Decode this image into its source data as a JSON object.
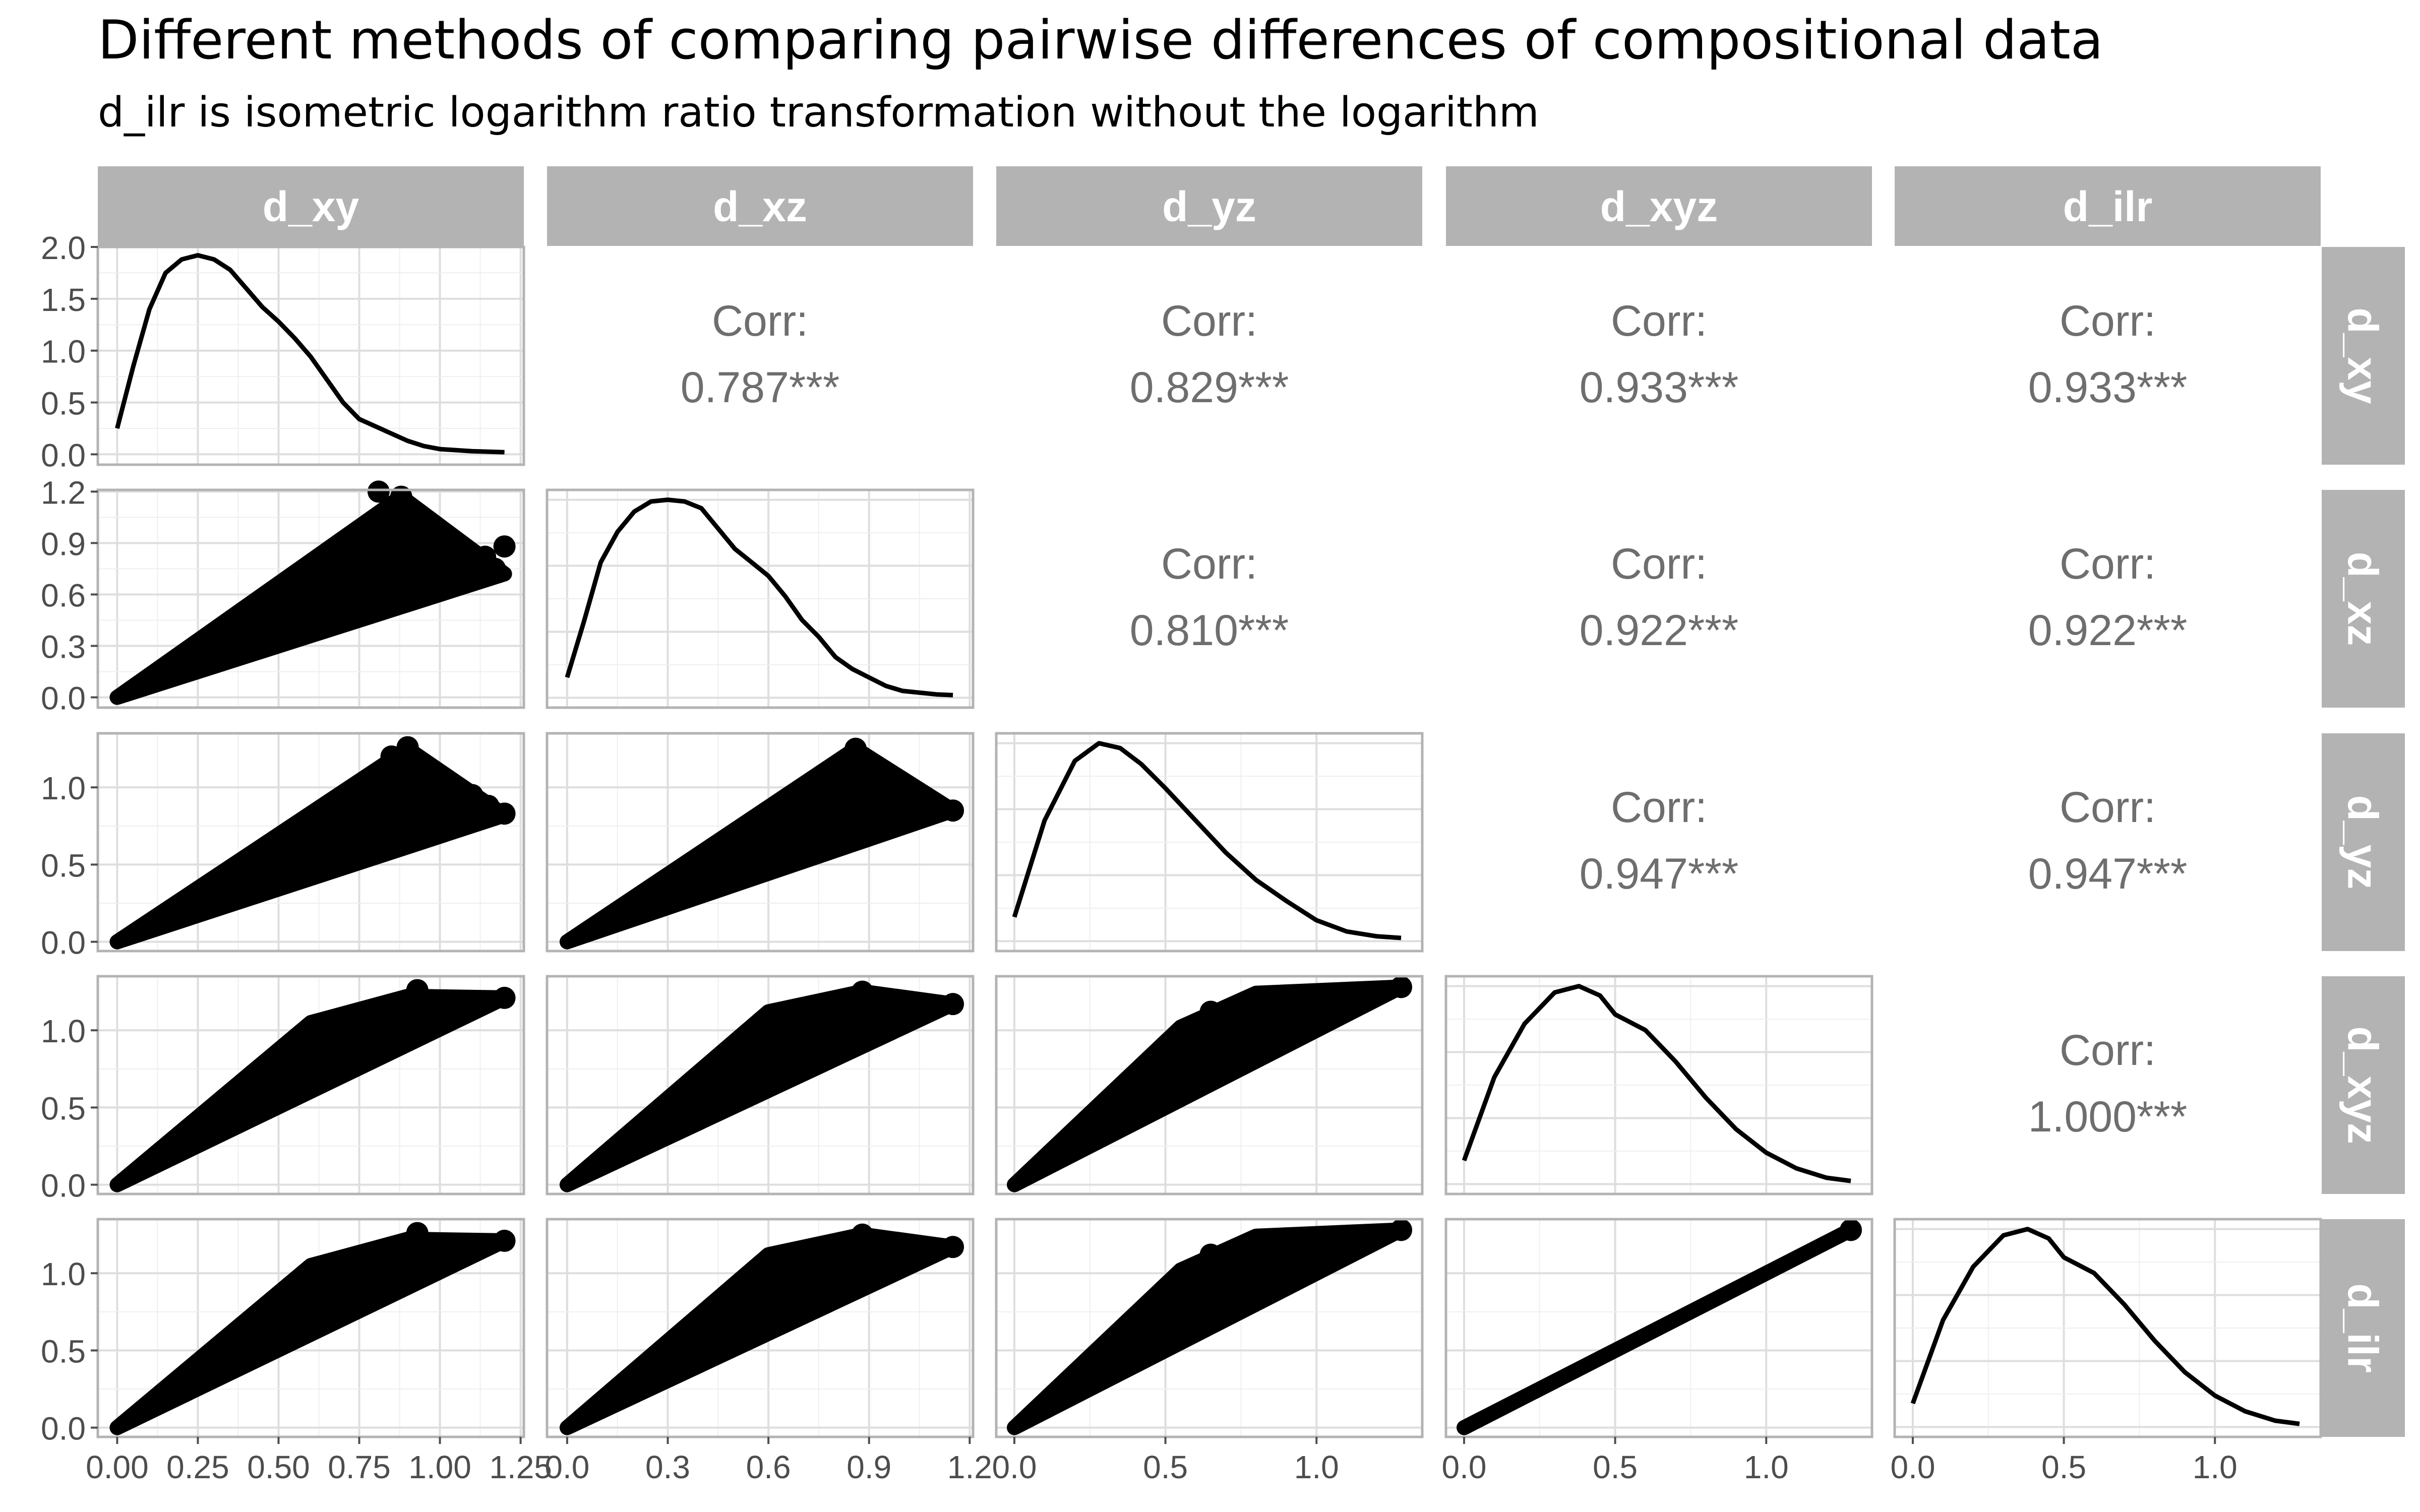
{
  "title": "Different methods of comparing pairwise differences of compositional data",
  "subtitle": "d_ilr is isometric logarithm ratio transformation without the logarithm",
  "colors": {
    "strip_bg": "#b3b3b3",
    "strip_text": "#ffffff",
    "panel_border": "#b3b3b3",
    "grid_major": "#dedede",
    "grid_minor": "#efefef",
    "marks": "#000000",
    "corr_text": "#6e6e6e"
  },
  "chart_data": {
    "type": "pairs",
    "variables": [
      "d_xy",
      "d_xz",
      "d_yz",
      "d_xyz",
      "d_ilr"
    ],
    "axes": {
      "d_xy": {
        "range": [
          -0.06,
          1.26
        ],
        "ticks": [
          "0.00",
          "0.25",
          "0.50",
          "0.75",
          "1.00",
          "1.25"
        ]
      },
      "d_xz": {
        "range": [
          -0.06,
          1.21
        ],
        "ticks": [
          "0.0",
          "0.3",
          "0.6",
          "0.9",
          "1.2"
        ]
      },
      "d_yz": {
        "range": [
          -0.06,
          1.35
        ],
        "ticks": [
          "0.0",
          "0.5",
          "1.0"
        ]
      },
      "d_xyz": {
        "range": [
          -0.06,
          1.35
        ],
        "ticks": [
          "0.0",
          "0.5",
          "1.0"
        ]
      },
      "d_ilr": {
        "range": [
          -0.06,
          1.35
        ],
        "ticks": [
          "0.0",
          "0.5",
          "1.0"
        ]
      }
    },
    "density_y": {
      "d_xy": {
        "range": [
          -0.1,
          2.0
        ],
        "ticks": [
          "0.0",
          "0.5",
          "1.0",
          "1.5",
          "2.0"
        ]
      }
    },
    "diagonal_density": {
      "d_xy": [
        [
          0.0,
          0.25
        ],
        [
          0.05,
          0.85
        ],
        [
          0.1,
          1.4
        ],
        [
          0.15,
          1.75
        ],
        [
          0.2,
          1.88
        ],
        [
          0.25,
          1.92
        ],
        [
          0.3,
          1.88
        ],
        [
          0.35,
          1.78
        ],
        [
          0.4,
          1.6
        ],
        [
          0.45,
          1.42
        ],
        [
          0.5,
          1.28
        ],
        [
          0.55,
          1.12
        ],
        [
          0.6,
          0.94
        ],
        [
          0.65,
          0.72
        ],
        [
          0.7,
          0.5
        ],
        [
          0.75,
          0.34
        ],
        [
          0.8,
          0.27
        ],
        [
          0.85,
          0.2
        ],
        [
          0.9,
          0.13
        ],
        [
          0.95,
          0.08
        ],
        [
          1.0,
          0.05
        ],
        [
          1.1,
          0.03
        ],
        [
          1.2,
          0.02
        ]
      ],
      "d_xz": [
        [
          0.0,
          0.12
        ],
        [
          0.05,
          0.45
        ],
        [
          0.1,
          0.8
        ],
        [
          0.15,
          0.98
        ],
        [
          0.2,
          1.1
        ],
        [
          0.25,
          1.16
        ],
        [
          0.3,
          1.17
        ],
        [
          0.35,
          1.16
        ],
        [
          0.4,
          1.12
        ],
        [
          0.45,
          1.0
        ],
        [
          0.5,
          0.88
        ],
        [
          0.55,
          0.8
        ],
        [
          0.6,
          0.72
        ],
        [
          0.65,
          0.6
        ],
        [
          0.7,
          0.46
        ],
        [
          0.75,
          0.36
        ],
        [
          0.8,
          0.24
        ],
        [
          0.85,
          0.17
        ],
        [
          0.9,
          0.12
        ],
        [
          0.95,
          0.07
        ],
        [
          1.0,
          0.04
        ],
        [
          1.1,
          0.02
        ],
        [
          1.15,
          0.015
        ]
      ],
      "d_yz": [
        [
          0.0,
          0.15
        ],
        [
          0.1,
          0.75
        ],
        [
          0.2,
          1.12
        ],
        [
          0.28,
          1.23
        ],
        [
          0.35,
          1.2
        ],
        [
          0.42,
          1.1
        ],
        [
          0.5,
          0.95
        ],
        [
          0.6,
          0.75
        ],
        [
          0.7,
          0.55
        ],
        [
          0.8,
          0.38
        ],
        [
          0.9,
          0.25
        ],
        [
          1.0,
          0.13
        ],
        [
          1.1,
          0.06
        ],
        [
          1.2,
          0.03
        ],
        [
          1.28,
          0.02
        ]
      ],
      "d_xyz": [
        [
          0.0,
          0.15
        ],
        [
          0.1,
          0.68
        ],
        [
          0.2,
          1.02
        ],
        [
          0.3,
          1.22
        ],
        [
          0.38,
          1.26
        ],
        [
          0.45,
          1.2
        ],
        [
          0.5,
          1.08
        ],
        [
          0.6,
          0.98
        ],
        [
          0.7,
          0.78
        ],
        [
          0.8,
          0.55
        ],
        [
          0.9,
          0.35
        ],
        [
          1.0,
          0.2
        ],
        [
          1.1,
          0.1
        ],
        [
          1.2,
          0.04
        ],
        [
          1.28,
          0.02
        ]
      ],
      "d_ilr": [
        [
          0.0,
          0.15
        ],
        [
          0.1,
          0.68
        ],
        [
          0.2,
          1.02
        ],
        [
          0.3,
          1.22
        ],
        [
          0.38,
          1.26
        ],
        [
          0.45,
          1.2
        ],
        [
          0.5,
          1.08
        ],
        [
          0.6,
          0.98
        ],
        [
          0.7,
          0.78
        ],
        [
          0.8,
          0.55
        ],
        [
          0.9,
          0.35
        ],
        [
          1.0,
          0.2
        ],
        [
          1.1,
          0.1
        ],
        [
          1.2,
          0.04
        ],
        [
          1.28,
          0.02
        ]
      ]
    },
    "correlations": [
      {
        "x": "d_xz",
        "y": "d_xy",
        "label": "Corr:",
        "value": "0.787***"
      },
      {
        "x": "d_yz",
        "y": "d_xy",
        "label": "Corr:",
        "value": "0.829***"
      },
      {
        "x": "d_xyz",
        "y": "d_xy",
        "label": "Corr:",
        "value": "0.933***"
      },
      {
        "x": "d_ilr",
        "y": "d_xy",
        "label": "Corr:",
        "value": "0.933***"
      },
      {
        "x": "d_yz",
        "y": "d_xz",
        "label": "Corr:",
        "value": "0.810***"
      },
      {
        "x": "d_xyz",
        "y": "d_xz",
        "label": "Corr:",
        "value": "0.922***"
      },
      {
        "x": "d_ilr",
        "y": "d_xz",
        "label": "Corr:",
        "value": "0.922***"
      },
      {
        "x": "d_xyz",
        "y": "d_yz",
        "label": "Corr:",
        "value": "0.947***"
      },
      {
        "x": "d_ilr",
        "y": "d_yz",
        "label": "Corr:",
        "value": "0.947***"
      },
      {
        "x": "d_ilr",
        "y": "d_xyz",
        "label": "Corr:",
        "value": "1.000***"
      }
    ],
    "scatter_cones": [
      {
        "x": "d_xy",
        "y": "d_xz",
        "lower": [
          [
            0,
            0
          ],
          [
            1.2,
            0.72
          ]
        ],
        "upper": [
          [
            0,
            0
          ],
          [
            0.88,
            1.17
          ]
        ],
        "outliers": [
          [
            0.81,
            1.2
          ],
          [
            0.88,
            1.17
          ],
          [
            0.93,
            1.0
          ],
          [
            0.95,
            0.88
          ],
          [
            0.98,
            0.85
          ],
          [
            1.03,
            0.86
          ],
          [
            1.08,
            0.84
          ],
          [
            1.14,
            0.82
          ],
          [
            1.2,
            0.88
          ],
          [
            1.17,
            0.75
          ]
        ]
      },
      {
        "x": "d_xy",
        "y": "d_yz",
        "lower": [
          [
            0,
            0
          ],
          [
            1.2,
            0.82
          ]
        ],
        "upper": [
          [
            0,
            0
          ],
          [
            0.9,
            1.25
          ]
        ],
        "outliers": [
          [
            0.85,
            1.2
          ],
          [
            0.9,
            1.26
          ],
          [
            0.95,
            1.0
          ],
          [
            1.0,
            0.98
          ],
          [
            1.05,
            0.96
          ],
          [
            1.1,
            0.95
          ],
          [
            1.15,
            0.88
          ],
          [
            1.2,
            0.83
          ]
        ]
      },
      {
        "x": "d_xz",
        "y": "d_yz",
        "lower": [
          [
            0,
            0
          ],
          [
            1.15,
            0.85
          ]
        ],
        "upper": [
          [
            0,
            0
          ],
          [
            0.86,
            1.25
          ]
        ],
        "outliers": [
          [
            0.86,
            1.25
          ],
          [
            0.9,
            1.0
          ],
          [
            0.95,
            0.95
          ],
          [
            1.0,
            0.9
          ],
          [
            1.05,
            0.92
          ],
          [
            1.1,
            0.88
          ],
          [
            1.15,
            0.85
          ]
        ]
      },
      {
        "x": "d_xy",
        "y": "d_xyz",
        "lower": [
          [
            0,
            0
          ],
          [
            1.2,
            1.21
          ]
        ],
        "upper": [
          [
            0,
            0
          ],
          [
            0.6,
            1.05
          ],
          [
            0.9,
            1.22
          ]
        ],
        "outliers": [
          [
            0.93,
            1.26
          ],
          [
            0.97,
            1.1
          ],
          [
            1.05,
            1.12
          ],
          [
            1.12,
            1.16
          ],
          [
            1.2,
            1.21
          ]
        ]
      },
      {
        "x": "d_xz",
        "y": "d_xyz",
        "lower": [
          [
            0,
            0
          ],
          [
            1.15,
            1.17
          ]
        ],
        "upper": [
          [
            0,
            0
          ],
          [
            0.6,
            1.12
          ],
          [
            0.88,
            1.25
          ]
        ],
        "outliers": [
          [
            0.88,
            1.25
          ],
          [
            0.95,
            1.05
          ],
          [
            1.05,
            1.1
          ],
          [
            1.15,
            1.17
          ]
        ]
      },
      {
        "x": "d_yz",
        "y": "d_xyz",
        "lower": [
          [
            0,
            0
          ],
          [
            1.28,
            1.28
          ]
        ],
        "upper": [
          [
            0,
            0
          ],
          [
            0.55,
            1.02
          ],
          [
            0.8,
            1.24
          ]
        ],
        "outliers": [
          [
            0.65,
            1.12
          ],
          [
            0.85,
            1.22
          ],
          [
            0.9,
            1.15
          ],
          [
            1.0,
            1.18
          ],
          [
            1.15,
            1.22
          ],
          [
            1.28,
            1.28
          ]
        ]
      },
      {
        "x": "d_xy",
        "y": "d_ilr",
        "lower": [
          [
            0,
            0
          ],
          [
            1.2,
            1.21
          ]
        ],
        "upper": [
          [
            0,
            0
          ],
          [
            0.6,
            1.05
          ],
          [
            0.9,
            1.22
          ]
        ],
        "outliers": [
          [
            0.93,
            1.26
          ],
          [
            0.97,
            1.1
          ],
          [
            1.05,
            1.12
          ],
          [
            1.12,
            1.16
          ],
          [
            1.2,
            1.21
          ]
        ]
      },
      {
        "x": "d_xz",
        "y": "d_ilr",
        "lower": [
          [
            0,
            0
          ],
          [
            1.15,
            1.17
          ]
        ],
        "upper": [
          [
            0,
            0
          ],
          [
            0.6,
            1.12
          ],
          [
            0.88,
            1.25
          ]
        ],
        "outliers": [
          [
            0.88,
            1.25
          ],
          [
            0.95,
            1.05
          ],
          [
            1.05,
            1.1
          ],
          [
            1.15,
            1.17
          ]
        ]
      },
      {
        "x": "d_yz",
        "y": "d_ilr",
        "lower": [
          [
            0,
            0
          ],
          [
            1.28,
            1.28
          ]
        ],
        "upper": [
          [
            0,
            0
          ],
          [
            0.55,
            1.02
          ],
          [
            0.8,
            1.24
          ]
        ],
        "outliers": [
          [
            0.65,
            1.12
          ],
          [
            0.85,
            1.22
          ],
          [
            0.9,
            1.15
          ],
          [
            1.0,
            1.18
          ],
          [
            1.15,
            1.22
          ],
          [
            1.28,
            1.28
          ]
        ]
      },
      {
        "x": "d_xyz",
        "y": "d_ilr",
        "lower": [
          [
            0,
            0
          ],
          [
            1.28,
            1.28
          ]
        ],
        "upper": [
          [
            0,
            0
          ],
          [
            1.28,
            1.28
          ]
        ],
        "outliers": [
          [
            1.28,
            1.28
          ]
        ]
      }
    ]
  }
}
